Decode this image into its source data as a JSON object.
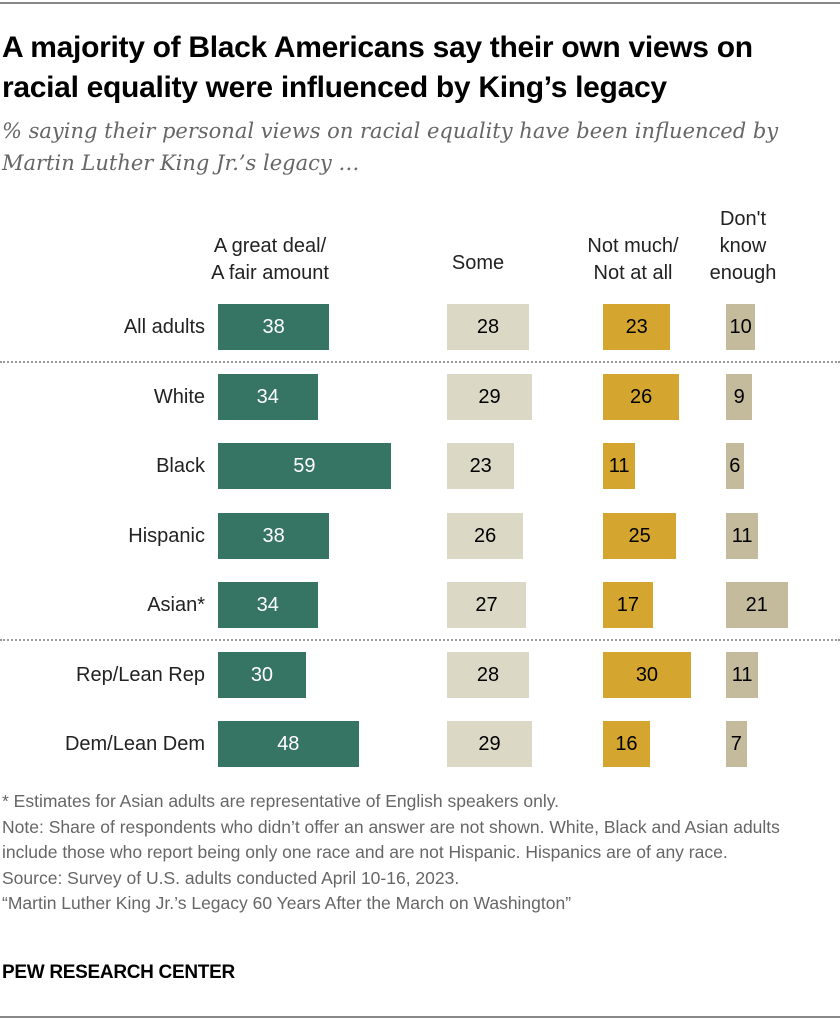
{
  "title": "A majority of Black Americans say their own views on racial equality were influenced by King’s legacy",
  "subtitle": "% saying their personal views on racial equality have been influenced by Martin Luther King Jr.’s legacy …",
  "chart_data": {
    "type": "bar",
    "orientation": "horizontal",
    "layout": "separate-columns",
    "categories": [
      "All adults",
      "White",
      "Black",
      "Hispanic",
      "Asian*",
      "Rep/Lean Rep",
      "Dem/Lean Dem"
    ],
    "series": [
      {
        "name": "A great deal/\nA fair amount",
        "color": "#367463",
        "text_color": "#ffffff",
        "values": [
          38,
          34,
          59,
          38,
          34,
          30,
          48
        ]
      },
      {
        "name": "Some",
        "color": "#dcd8c6",
        "text_color": "#000000",
        "values": [
          28,
          29,
          23,
          26,
          27,
          28,
          29
        ]
      },
      {
        "name": "Not much/\nNot at all",
        "color": "#d4a62f",
        "text_color": "#000000",
        "values": [
          23,
          26,
          11,
          25,
          17,
          30,
          16
        ]
      },
      {
        "name": "Don't\nknow\nenough",
        "color": "#c4bb9d",
        "text_color": "#000000",
        "values": [
          10,
          9,
          6,
          11,
          21,
          11,
          7
        ]
      }
    ],
    "group_dividers_after": [
      "All adults",
      "Asian*"
    ],
    "grid": false,
    "legend": "column headers on top"
  },
  "notes": [
    "* Estimates for Asian adults are representative of English speakers only.",
    "Note: Share of respondents who didn’t offer an answer are not shown. White, Black and Asian adults include those who report being only one race and are not Hispanic. Hispanics are of any race.",
    "Source: Survey of U.S. adults conducted April 10-16, 2023.",
    "“Martin Luther King Jr.’s Legacy 60 Years After the March on Washington”"
  ],
  "brand": "PEW RESEARCH CENTER"
}
